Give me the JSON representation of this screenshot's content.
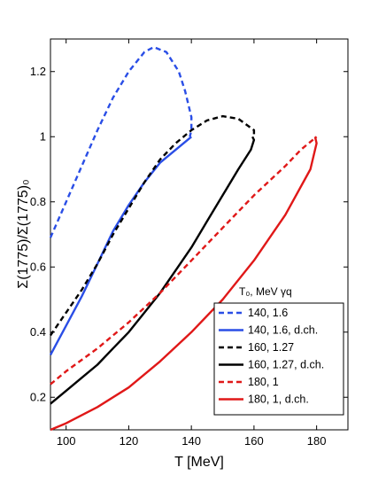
{
  "chart_data": {
    "type": "line",
    "xlabel": "T [MeV]",
    "ylabel": "Σ(1775)/Σ(1775)₀",
    "xlim": [
      95,
      190
    ],
    "ylim": [
      0.1,
      1.3
    ],
    "xticks": [
      100,
      120,
      140,
      160,
      180
    ],
    "yticks": [
      0.2,
      0.4,
      0.6,
      0.8,
      1,
      1.2
    ],
    "xtick_labels": [
      "100",
      "120",
      "140",
      "160",
      "180"
    ],
    "ytick_labels": [
      "0.2",
      "0.4",
      "0.6",
      "0.8",
      "1",
      "1.2"
    ],
    "grid": false,
    "legend": {
      "placement": "bottom-right",
      "header": "T₀, MeV  γq"
    },
    "series": [
      {
        "name": "140, 1.6",
        "color": "#2a4ee6",
        "dash": true,
        "x": [
          95,
          100,
          105,
          110,
          115,
          120,
          125,
          128,
          132,
          136,
          138,
          140,
          140,
          139.5
        ],
        "y": [
          0.69,
          0.8,
          0.91,
          1.02,
          1.12,
          1.2,
          1.26,
          1.275,
          1.26,
          1.2,
          1.14,
          1.06,
          1.02,
          1.0
        ]
      },
      {
        "name": "140, 1.6, d.ch.",
        "color": "#2a4ee6",
        "dash": false,
        "x": [
          95,
          100,
          105,
          110,
          115,
          120,
          125,
          130,
          135,
          140
        ],
        "y": [
          0.33,
          0.42,
          0.51,
          0.61,
          0.71,
          0.79,
          0.86,
          0.92,
          0.96,
          1.0
        ]
      },
      {
        "name": "160, 1.27",
        "color": "#000000",
        "dash": true,
        "x": [
          95,
          100,
          105,
          110,
          115,
          120,
          125,
          130,
          135,
          140,
          145,
          150,
          155,
          160,
          160
        ],
        "y": [
          0.39,
          0.46,
          0.53,
          0.61,
          0.7,
          0.78,
          0.86,
          0.93,
          0.98,
          1.02,
          1.05,
          1.063,
          1.055,
          1.02,
          1.0
        ]
      },
      {
        "name": "160, 1.27, d.ch.",
        "color": "#000000",
        "dash": false,
        "x": [
          95,
          100,
          105,
          110,
          115,
          120,
          125,
          130,
          135,
          140,
          145,
          150,
          155,
          159,
          160,
          159.5
        ],
        "y": [
          0.18,
          0.22,
          0.26,
          0.3,
          0.35,
          0.4,
          0.46,
          0.52,
          0.59,
          0.66,
          0.74,
          0.82,
          0.9,
          0.96,
          0.99,
          1.0
        ]
      },
      {
        "name": "180, 1",
        "color": "#e01818",
        "dash": true,
        "x": [
          95,
          100,
          110,
          120,
          130,
          140,
          150,
          160,
          170,
          175,
          180
        ],
        "y": [
          0.24,
          0.28,
          0.35,
          0.43,
          0.52,
          0.62,
          0.72,
          0.82,
          0.91,
          0.96,
          1.0
        ]
      },
      {
        "name": "180, 1, d.ch.",
        "color": "#e01818",
        "dash": false,
        "x": [
          95,
          100,
          110,
          120,
          130,
          140,
          150,
          160,
          170,
          178,
          180,
          179.5
        ],
        "y": [
          0.1,
          0.12,
          0.17,
          0.23,
          0.31,
          0.4,
          0.5,
          0.62,
          0.76,
          0.9,
          0.98,
          1.0
        ]
      }
    ]
  }
}
